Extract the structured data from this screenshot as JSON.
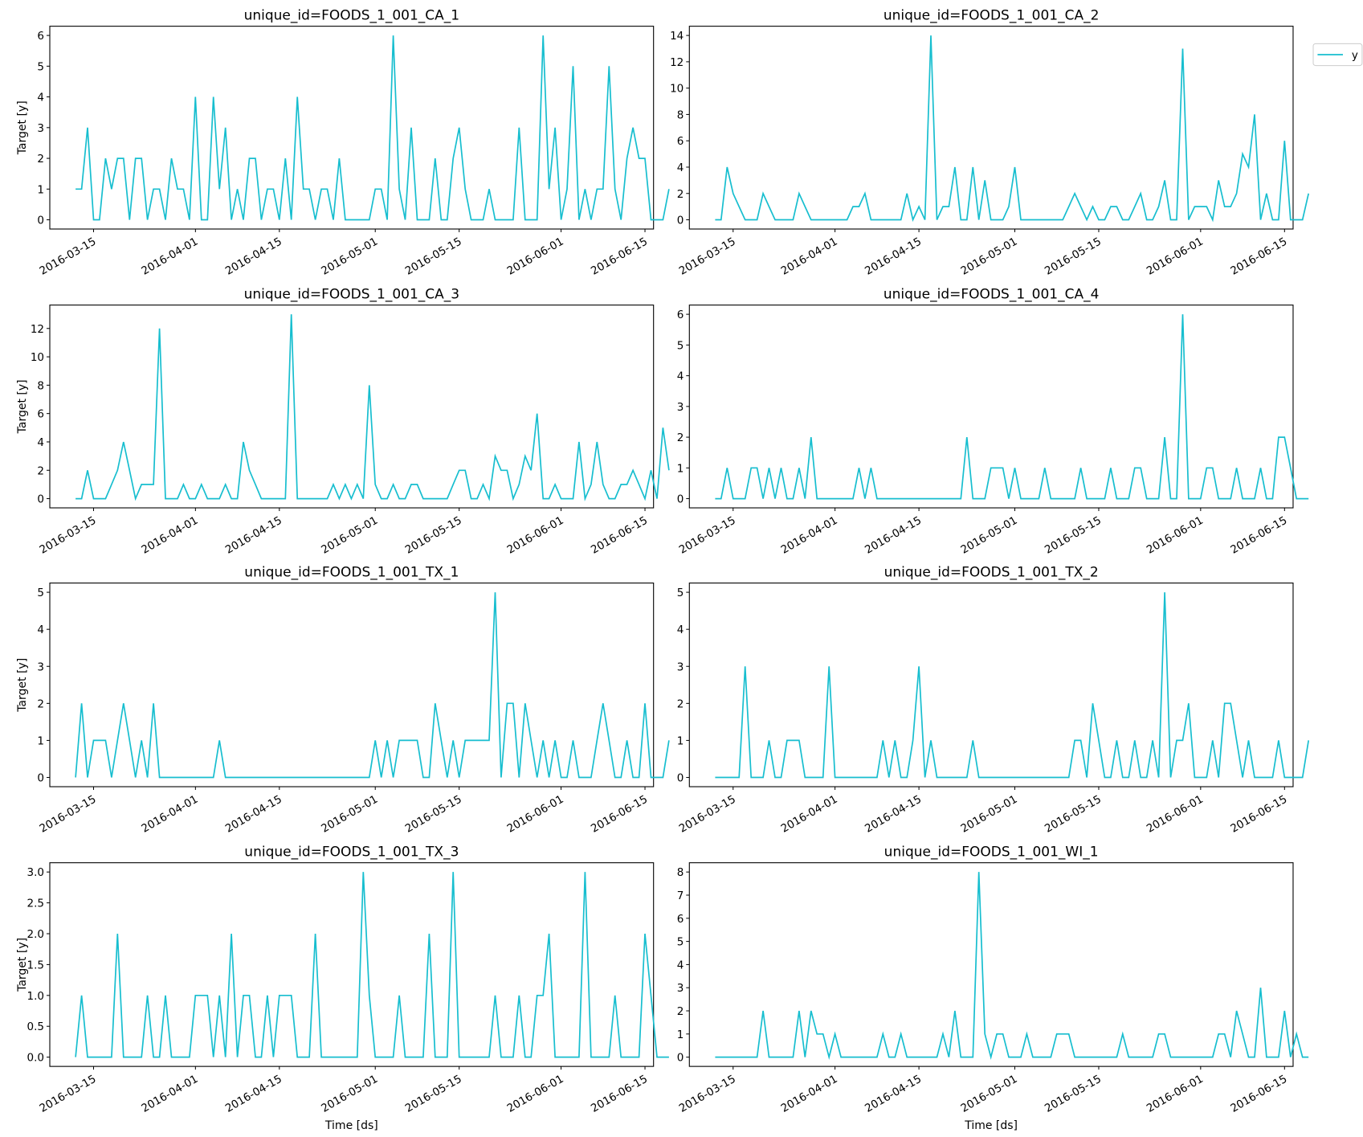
{
  "figure": {
    "legend": {
      "label": "y",
      "color": "#17becf",
      "placement": "upper-right-outside"
    },
    "line_color": "#17becf"
  },
  "chart_data": {
    "type": "line",
    "layout": "4x2 grid of subplots",
    "x_start": "2016-03-12",
    "x_end": "2016-06-19",
    "x_frequency": "daily",
    "xlabel": "Time [ds]",
    "ylabel": "Target [y]",
    "x_ticks": [
      "2016-03-15",
      "2016-04-01",
      "2016-04-15",
      "2016-05-01",
      "2016-05-15",
      "2016-06-01",
      "2016-06-15"
    ],
    "legend": [
      "y"
    ],
    "grid": false,
    "panels": [
      {
        "title": "unique_id=FOODS_1_001_CA_1",
        "ylim": [
          -0.3,
          6.3
        ],
        "y_ticks": [
          "0",
          "1",
          "2",
          "3",
          "4",
          "5",
          "6"
        ],
        "values": [
          1,
          1,
          3,
          0,
          0,
          2,
          1,
          2,
          2,
          0,
          2,
          2,
          0,
          1,
          1,
          0,
          2,
          1,
          1,
          0,
          4,
          0,
          0,
          4,
          1,
          3,
          0,
          1,
          0,
          2,
          2,
          0,
          1,
          1,
          0,
          2,
          0,
          4,
          1,
          1,
          0,
          1,
          1,
          0,
          2,
          0,
          0,
          0,
          0,
          0,
          1,
          1,
          0,
          6,
          1,
          0,
          3,
          0,
          0,
          0,
          2,
          0,
          0,
          2,
          3,
          1,
          0,
          0,
          0,
          1,
          0,
          0,
          0,
          0,
          3,
          0,
          0,
          0,
          6,
          1,
          3,
          0,
          1,
          5,
          0,
          1,
          0,
          1,
          1,
          5,
          1,
          0,
          2,
          3,
          2,
          2,
          0,
          0,
          0,
          1
        ]
      },
      {
        "title": "unique_id=FOODS_1_001_CA_2",
        "ylim": [
          -0.7,
          14.7
        ],
        "y_ticks": [
          "0",
          "2",
          "4",
          "6",
          "8",
          "10",
          "12",
          "14"
        ],
        "values": [
          0,
          0,
          4,
          2,
          1,
          0,
          0,
          0,
          2,
          1,
          0,
          0,
          0,
          0,
          2,
          1,
          0,
          0,
          0,
          0,
          0,
          0,
          0,
          1,
          1,
          2,
          0,
          0,
          0,
          0,
          0,
          0,
          2,
          0,
          1,
          0,
          14,
          0,
          1,
          1,
          4,
          0,
          0,
          4,
          0,
          3,
          0,
          0,
          0,
          1,
          4,
          0,
          0,
          0,
          0,
          0,
          0,
          0,
          0,
          1,
          2,
          1,
          0,
          1,
          0,
          0,
          1,
          1,
          0,
          0,
          1,
          2,
          0,
          0,
          1,
          3,
          0,
          0,
          13,
          0,
          1,
          1,
          1,
          0,
          3,
          1,
          1,
          2,
          5,
          4,
          8,
          0,
          2,
          0,
          0,
          6,
          0,
          0,
          0,
          2
        ]
      },
      {
        "title": "unique_id=FOODS_1_001_CA_3",
        "ylim": [
          -0.65,
          13.65
        ],
        "y_ticks": [
          "0",
          "2",
          "4",
          "6",
          "8",
          "10",
          "12"
        ],
        "values": [
          0,
          0,
          2,
          0,
          0,
          0,
          1,
          2,
          4,
          2,
          0,
          1,
          1,
          1,
          12,
          0,
          0,
          0,
          1,
          0,
          0,
          1,
          0,
          0,
          0,
          1,
          0,
          0,
          4,
          2,
          1,
          0,
          0,
          0,
          0,
          0,
          13,
          0,
          0,
          0,
          0,
          0,
          0,
          1,
          0,
          1,
          0,
          1,
          0,
          8,
          1,
          0,
          0,
          1,
          0,
          0,
          1,
          1,
          0,
          0,
          0,
          0,
          0,
          1,
          2,
          2,
          0,
          0,
          1,
          0,
          3,
          2,
          2,
          0,
          1,
          3,
          2,
          6,
          0,
          0,
          1,
          0,
          0,
          0,
          4,
          0,
          1,
          4,
          1,
          0,
          0,
          1,
          1,
          2,
          1,
          0,
          2,
          0,
          5,
          2
        ]
      },
      {
        "title": "unique_id=FOODS_1_001_CA_4",
        "ylim": [
          -0.3,
          6.3
        ],
        "y_ticks": [
          "0",
          "1",
          "2",
          "3",
          "4",
          "5",
          "6"
        ],
        "values": [
          0,
          0,
          1,
          0,
          0,
          0,
          1,
          1,
          0,
          1,
          0,
          1,
          0,
          0,
          1,
          0,
          2,
          0,
          0,
          0,
          0,
          0,
          0,
          0,
          1,
          0,
          1,
          0,
          0,
          0,
          0,
          0,
          0,
          0,
          0,
          0,
          0,
          0,
          0,
          0,
          0,
          0,
          2,
          0,
          0,
          0,
          1,
          1,
          1,
          0,
          1,
          0,
          0,
          0,
          0,
          1,
          0,
          0,
          0,
          0,
          0,
          1,
          0,
          0,
          0,
          0,
          1,
          0,
          0,
          0,
          1,
          1,
          0,
          0,
          0,
          2,
          0,
          0,
          6,
          0,
          0,
          0,
          1,
          1,
          0,
          0,
          0,
          1,
          0,
          0,
          0,
          1,
          0,
          0,
          2,
          2,
          1,
          0,
          0,
          0
        ]
      },
      {
        "title": "unique_id=FOODS_1_001_TX_1",
        "ylim": [
          -0.25,
          5.25
        ],
        "y_ticks": [
          "0",
          "1",
          "2",
          "3",
          "4",
          "5"
        ],
        "values": [
          0,
          2,
          0,
          1,
          1,
          1,
          0,
          1,
          2,
          1,
          0,
          1,
          0,
          2,
          0,
          0,
          0,
          0,
          0,
          0,
          0,
          0,
          0,
          0,
          1,
          0,
          0,
          0,
          0,
          0,
          0,
          0,
          0,
          0,
          0,
          0,
          0,
          0,
          0,
          0,
          0,
          0,
          0,
          0,
          0,
          0,
          0,
          0,
          0,
          0,
          1,
          0,
          1,
          0,
          1,
          1,
          1,
          1,
          0,
          0,
          2,
          1,
          0,
          1,
          0,
          1,
          1,
          1,
          1,
          1,
          5,
          0,
          2,
          2,
          0,
          2,
          1,
          0,
          1,
          0,
          1,
          0,
          0,
          1,
          0,
          0,
          0,
          1,
          2,
          1,
          0,
          0,
          1,
          0,
          0,
          2,
          0,
          0,
          0,
          1
        ]
      },
      {
        "title": "unique_id=FOODS_1_001_TX_2",
        "ylim": [
          -0.25,
          5.25
        ],
        "y_ticks": [
          "0",
          "1",
          "2",
          "3",
          "4",
          "5"
        ],
        "values": [
          0,
          0,
          0,
          0,
          0,
          3,
          0,
          0,
          0,
          1,
          0,
          0,
          1,
          1,
          1,
          0,
          0,
          0,
          0,
          3,
          0,
          0,
          0,
          0,
          0,
          0,
          0,
          0,
          1,
          0,
          1,
          0,
          0,
          1,
          3,
          0,
          1,
          0,
          0,
          0,
          0,
          0,
          0,
          1,
          0,
          0,
          0,
          0,
          0,
          0,
          0,
          0,
          0,
          0,
          0,
          0,
          0,
          0,
          0,
          0,
          1,
          1,
          0,
          2,
          1,
          0,
          0,
          1,
          0,
          0,
          1,
          0,
          0,
          1,
          0,
          5,
          0,
          1,
          1,
          2,
          0,
          0,
          0,
          1,
          0,
          2,
          2,
          1,
          0,
          1,
          0,
          0,
          0,
          0,
          1,
          0,
          0,
          0,
          0,
          1
        ]
      },
      {
        "title": "unique_id=FOODS_1_001_TX_3",
        "ylim": [
          -0.15,
          3.15
        ],
        "y_ticks": [
          "0.0",
          "0.5",
          "1.0",
          "1.5",
          "2.0",
          "2.5",
          "3.0"
        ],
        "values": [
          0,
          1,
          0,
          0,
          0,
          0,
          0,
          2,
          0,
          0,
          0,
          0,
          1,
          0,
          0,
          1,
          0,
          0,
          0,
          0,
          1,
          1,
          1,
          0,
          1,
          0,
          2,
          0,
          1,
          1,
          0,
          0,
          1,
          0,
          1,
          1,
          1,
          0,
          0,
          0,
          2,
          0,
          0,
          0,
          0,
          0,
          0,
          0,
          3,
          1,
          0,
          0,
          0,
          0,
          1,
          0,
          0,
          0,
          0,
          2,
          0,
          0,
          0,
          3,
          0,
          0,
          0,
          0,
          0,
          0,
          1,
          0,
          0,
          0,
          1,
          0,
          0,
          1,
          1,
          2,
          0,
          0,
          0,
          0,
          0,
          3,
          0,
          0,
          0,
          0,
          1,
          0,
          0,
          0,
          0,
          2,
          1,
          0,
          0,
          0
        ]
      },
      {
        "title": "unique_id=FOODS_1_001_WI_1",
        "ylim": [
          -0.4,
          8.4
        ],
        "y_ticks": [
          "0",
          "1",
          "2",
          "3",
          "4",
          "5",
          "6",
          "7",
          "8"
        ],
        "values": [
          0,
          0,
          0,
          0,
          0,
          0,
          0,
          0,
          2,
          0,
          0,
          0,
          0,
          0,
          2,
          0,
          2,
          1,
          1,
          0,
          1,
          0,
          0,
          0,
          0,
          0,
          0,
          0,
          1,
          0,
          0,
          1,
          0,
          0,
          0,
          0,
          0,
          0,
          1,
          0,
          2,
          0,
          0,
          0,
          8,
          1,
          0,
          1,
          1,
          0,
          0,
          0,
          1,
          0,
          0,
          0,
          0,
          1,
          1,
          1,
          0,
          0,
          0,
          0,
          0,
          0,
          0,
          0,
          1,
          0,
          0,
          0,
          0,
          0,
          1,
          1,
          0,
          0,
          0,
          0,
          0,
          0,
          0,
          0,
          1,
          1,
          0,
          2,
          1,
          0,
          0,
          3,
          0,
          0,
          0,
          2,
          0,
          1,
          0,
          0
        ]
      }
    ]
  }
}
